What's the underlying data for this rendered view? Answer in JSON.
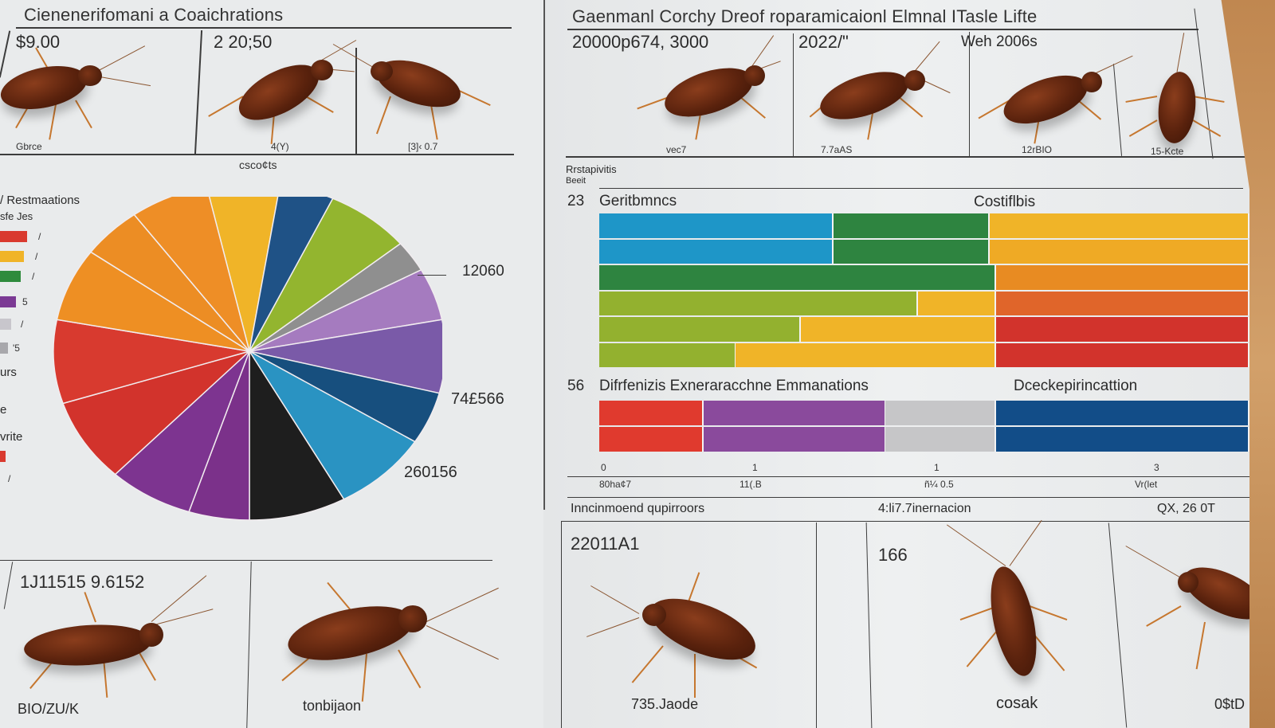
{
  "left_sheet": {
    "title": "Cienenerifomani a Coaichrations",
    "top_panels": [
      {
        "number": "$9.00",
        "caption": "Gbrce"
      },
      {
        "number": "2 20;50",
        "caption": "4(Y)"
      },
      {
        "number": "",
        "caption": "[3]‹ 0.7"
      }
    ],
    "top_footer": "csco¢ts",
    "legend": {
      "title": "/ Restmaations",
      "subtitle": "sfe Jes",
      "items": [
        {
          "color": "#d93a2f",
          "value": "/"
        },
        {
          "color": "#f0b428",
          "value": "/"
        },
        {
          "color": "#2e8b3c",
          "value": "/"
        },
        {
          "color": "#7b3a94",
          "value": "5"
        },
        {
          "color": "#c8c6cc",
          "value": "/"
        },
        {
          "color": "#a8a8ac",
          "value": "'5"
        }
      ],
      "extra_labels": [
        "urs",
        "e",
        "vrite"
      ],
      "tail": {
        "color": "#d93a2f",
        "value": "/"
      }
    },
    "pie_labels": [
      "12060",
      "74£566",
      "260156"
    ],
    "bottom_panels": [
      {
        "number": "1J11515 9.6152",
        "caption": "BIO/ZU/K"
      },
      {
        "number": "",
        "caption": "tonbijaon"
      }
    ]
  },
  "right_sheet": {
    "title": "Gaenmanl Corchy Dreof roparamicaionl Elmnal ITasle Lifte",
    "top_panels": [
      {
        "number": "20000p674, 3000",
        "caption": "vec7"
      },
      {
        "number": "2022/\"",
        "caption": "7.7aAS"
      },
      {
        "number": "Weh 2006s",
        "caption": "12rBIO"
      },
      {
        "number": "",
        "caption": "15-Kcte"
      }
    ],
    "sub_label_1": "Rrstapivitis",
    "sub_label_2": "Beeit",
    "bar_chart_1": {
      "index": "23",
      "title": "Geritbmncs",
      "right_title": "Costiflbis"
    },
    "bar_chart_2": {
      "index": "56",
      "title": "Difrfenizis Exneraracchne Emmanations",
      "right_title": "Dceckepirincattion"
    },
    "axis_ticks": [
      "0",
      "1",
      "1",
      "3"
    ],
    "axis_sublabels": [
      "80ha¢7",
      "11(.B",
      "ñ¼ 0.5",
      "Vr(let"
    ],
    "footer_labels": [
      "Inncinmoend qupirroors",
      "4:li7.7inernacion",
      "QX, 26 0T"
    ],
    "bottom_panels": [
      {
        "number": "22011A1",
        "caption": "735.Jaode"
      },
      {
        "number": "166",
        "caption": "cosak"
      },
      {
        "number": "",
        "caption": "0$tD"
      }
    ]
  },
  "chart_data": [
    {
      "type": "pie",
      "title": "Cienenerifomani a Coaichrations",
      "legend_title": "/ Restmaations",
      "slices": [
        {
          "color": "#f0b428",
          "value": 6
        },
        {
          "color": "#1f5286",
          "value": 4.5
        },
        {
          "color": "#93b52f",
          "value": 7
        },
        {
          "color": "#8f8f8f",
          "value": 3
        },
        {
          "color": "#a57bbf",
          "value": 5
        },
        {
          "color": "#7a5aa8",
          "value": 7
        },
        {
          "color": "#174f7e",
          "value": 5
        },
        {
          "color": "#2a93c2",
          "value": 8
        },
        {
          "color": "#1e1e1e",
          "value": 8
        },
        {
          "color": "#7b318a",
          "value": 5
        },
        {
          "color": "#7d3490",
          "value": 7
        },
        {
          "color": "#d2332c",
          "value": 8
        },
        {
          "color": "#d83a2f",
          "value": 8
        },
        {
          "color": "#ee8f23",
          "value": 7
        },
        {
          "color": "#ec8d24",
          "value": 5
        },
        {
          "color": "#ee8e26",
          "value": 6.5
        }
      ],
      "annotations": [
        "12060",
        "74£566",
        "260156"
      ]
    },
    {
      "type": "bar",
      "orientation": "horizontal-stacked",
      "title": "23 Geritbmncs",
      "right_title": "Costiflbis",
      "rows": [
        {
          "segments": [
            {
              "color": "#1e96c8",
              "value": 36
            },
            {
              "color": "#2e8440",
              "value": 24
            },
            {
              "color": "#f0b428",
              "value": 40
            }
          ]
        },
        {
          "segments": [
            {
              "color": "#1e96c8",
              "value": 36
            },
            {
              "color": "#2e8440",
              "value": 24
            },
            {
              "color": "#efaa25",
              "value": 40
            }
          ]
        },
        {
          "segments": [
            {
              "color": "#2e8440",
              "value": 61
            },
            {
              "color": "#e88b22",
              "value": 39
            }
          ]
        },
        {
          "segments": [
            {
              "color": "#93b12f",
              "value": 49
            },
            {
              "color": "#f0b428",
              "value": 12
            },
            {
              "color": "#e0652a",
              "value": 39
            }
          ]
        },
        {
          "segments": [
            {
              "color": "#93b12f",
              "value": 31
            },
            {
              "color": "#f0b428",
              "value": 30
            },
            {
              "color": "#d2332c",
              "value": 39
            }
          ]
        },
        {
          "segments": [
            {
              "color": "#93b12f",
              "value": 21
            },
            {
              "color": "#f0b428",
              "value": 40
            },
            {
              "color": "#d2332c",
              "value": 39
            }
          ]
        }
      ]
    },
    {
      "type": "bar",
      "orientation": "horizontal-stacked",
      "title": "56 Difrfenizis Exneraracchne Emmanations",
      "right_title": "Dceckepirincattion",
      "xticks": [
        "0",
        "1",
        "1",
        "3"
      ],
      "rows": [
        {
          "segments": [
            {
              "color": "#e03a2e",
              "value": 16
            },
            {
              "color": "#8a4a9c",
              "value": 28
            },
            {
              "color": "#c6c6c8",
              "value": 17
            },
            {
              "color": "#124d88",
              "value": 39
            }
          ]
        },
        {
          "segments": [
            {
              "color": "#e03a2e",
              "value": 16
            },
            {
              "color": "#8a4a9c",
              "value": 28
            },
            {
              "color": "#c6c6c8",
              "value": 17
            },
            {
              "color": "#124d88",
              "value": 39
            }
          ]
        }
      ]
    }
  ]
}
